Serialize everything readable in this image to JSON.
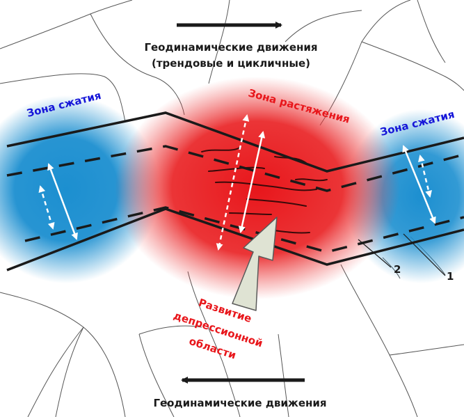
{
  "top_caption": {
    "line1": "Геодинамические движения",
    "line2": "(трендовые и цикличные)"
  },
  "bottom_caption": "Геодинамические движения",
  "zones": {
    "compression_left": "Зона сжатия",
    "compression_right": "Зона сжатия",
    "extension": "Зона растяжения"
  },
  "depression": {
    "line1": "Развитие",
    "line2": "депрессионной",
    "line3": "области"
  },
  "callouts": {
    "one": "1",
    "two": "2"
  },
  "colors": {
    "compression": "#1c8fd0",
    "extension": "#e8161b",
    "label_blue": "#1515d8",
    "label_red": "#e8161b",
    "lines": "#1a1a1a"
  }
}
